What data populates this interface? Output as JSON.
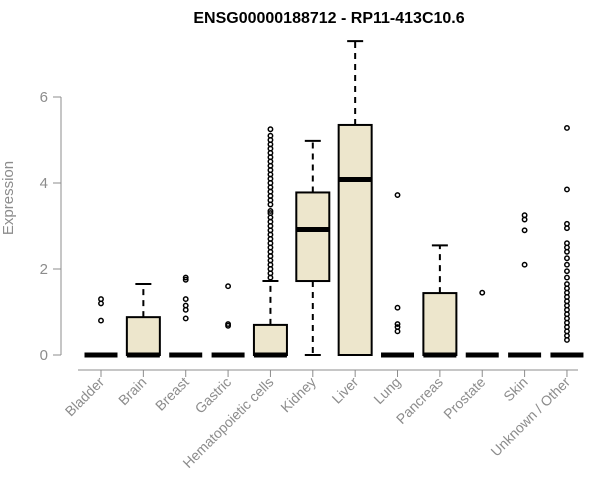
{
  "chart_data": {
    "type": "boxplot",
    "title": "ENSG00000188712 - RP11-413C10.6",
    "ylabel": "Expression",
    "xlabel": "",
    "ylim": [
      0,
      7.2
    ],
    "yticks": [
      0,
      2,
      4,
      6
    ],
    "box_fill": "#ede6cc",
    "categories": [
      "Bladder",
      "Brain",
      "Breast",
      "Gastric",
      "Hematopoietic cells",
      "Kidney",
      "Liver",
      "Lung",
      "Pancreas",
      "Prostate",
      "Skin",
      "Unknown / Other"
    ],
    "boxes": [
      {
        "q1": 0,
        "median": 0,
        "q3": 0,
        "whisker_low": 0,
        "whisker_high": 0,
        "outliers": [
          0.8,
          1.2,
          1.3
        ]
      },
      {
        "q1": 0,
        "median": 0,
        "q3": 0.88,
        "whisker_low": 0,
        "whisker_high": 1.65,
        "outliers": []
      },
      {
        "q1": 0,
        "median": 0,
        "q3": 0,
        "whisker_low": 0,
        "whisker_high": 0,
        "outliers": [
          0.85,
          1.05,
          1.15,
          1.3,
          1.75,
          1.8
        ]
      },
      {
        "q1": 0,
        "median": 0,
        "q3": 0,
        "whisker_low": 0,
        "whisker_high": 0,
        "outliers": [
          0.68,
          0.72,
          1.6
        ]
      },
      {
        "q1": 0,
        "median": 0,
        "q3": 0.7,
        "whisker_low": 0,
        "whisker_high": 1.72,
        "outliers": [
          1.8,
          1.9,
          2.0,
          2.1,
          2.2,
          2.3,
          2.4,
          2.5,
          2.6,
          2.7,
          2.8,
          2.9,
          3.0,
          3.1,
          3.2,
          3.3,
          3.35,
          3.5,
          3.6,
          3.7,
          3.8,
          3.9,
          4.0,
          4.1,
          4.2,
          4.3,
          4.4,
          4.5,
          4.6,
          4.7,
          4.8,
          4.9,
          5.0,
          5.1,
          5.25
        ]
      },
      {
        "q1": 1.72,
        "median": 2.92,
        "q3": 3.78,
        "whisker_low": 0,
        "whisker_high": 4.98,
        "outliers": []
      },
      {
        "q1": 0,
        "median": 4.08,
        "q3": 5.35,
        "whisker_low": 0,
        "whisker_high": 7.3,
        "outliers": []
      },
      {
        "q1": 0,
        "median": 0,
        "q3": 0,
        "whisker_low": 0,
        "whisker_high": 0,
        "outliers": [
          0.55,
          0.65,
          0.72,
          1.1,
          3.72
        ]
      },
      {
        "q1": 0,
        "median": 0,
        "q3": 1.44,
        "whisker_low": 0,
        "whisker_high": 2.55,
        "outliers": []
      },
      {
        "q1": 0,
        "median": 0,
        "q3": 0,
        "whisker_low": 0,
        "whisker_high": 0,
        "outliers": [
          1.45
        ]
      },
      {
        "q1": 0,
        "median": 0,
        "q3": 0,
        "whisker_low": 0,
        "whisker_high": 0,
        "outliers": [
          2.1,
          2.9,
          3.15,
          3.25
        ]
      },
      {
        "q1": 0,
        "median": 0,
        "q3": 0,
        "whisker_low": 0,
        "whisker_high": 0,
        "outliers": [
          0.35,
          0.45,
          0.55,
          0.65,
          0.75,
          0.85,
          0.95,
          1.05,
          1.15,
          1.25,
          1.35,
          1.45,
          1.55,
          1.65,
          1.8,
          1.95,
          2.1,
          2.25,
          2.4,
          2.5,
          2.6,
          2.95,
          3.05,
          3.85,
          5.28
        ]
      }
    ]
  }
}
